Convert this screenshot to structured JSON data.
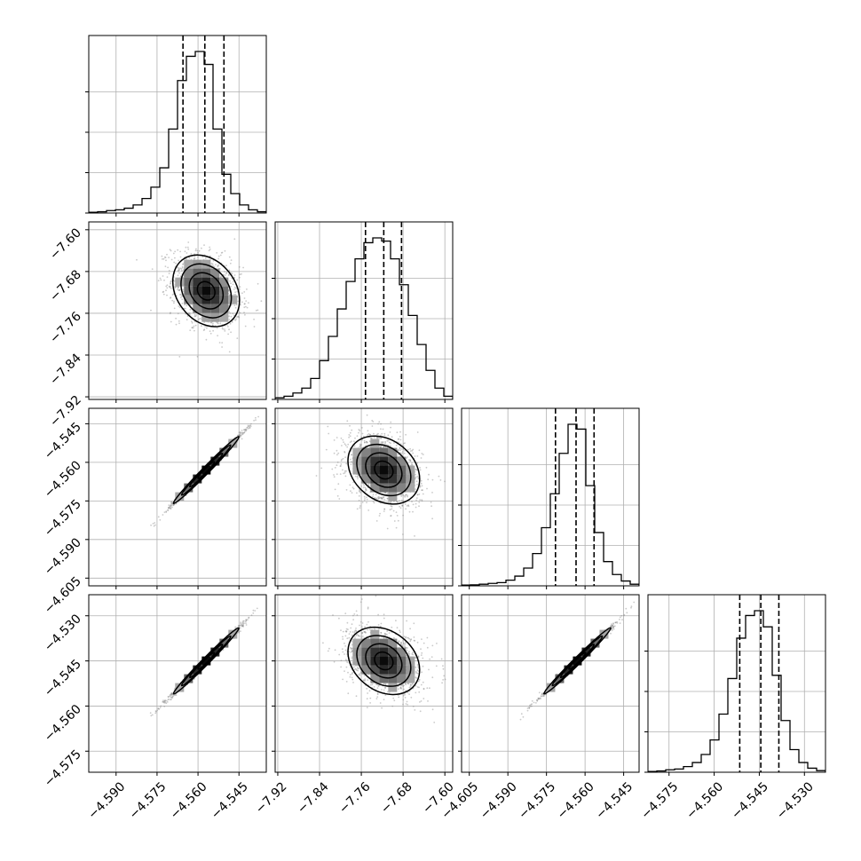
{
  "chart_data": {
    "type": "corner",
    "grid": true,
    "dimensions": 4,
    "parameters": [
      {
        "range": [
          -4.6,
          -4.535
        ],
        "ticks": [
          -4.59,
          -4.575,
          -4.56,
          -4.545
        ],
        "tick_labels": [
          "−4.590",
          "−4.575",
          "−4.560",
          "−4.545"
        ],
        "quantiles": [
          -4.5655,
          -4.5575,
          -4.5505
        ],
        "mean": -4.557,
        "sd": 0.006
      },
      {
        "range": [
          -7.925,
          -7.585
        ],
        "ticks": [
          -7.92,
          -7.84,
          -7.76,
          -7.68,
          -7.6
        ],
        "tick_labels": [
          "−7.92",
          "−7.84",
          "−7.76",
          "−7.68",
          "−7.60"
        ],
        "quantiles": [
          -7.752,
          -7.717,
          -7.683
        ],
        "mean": -7.717,
        "sd": 0.034
      },
      {
        "range": [
          -4.608,
          -4.539
        ],
        "ticks": [
          -4.605,
          -4.59,
          -4.575,
          -4.56,
          -4.545
        ],
        "tick_labels": [
          "−4.605",
          "−4.590",
          "−4.575",
          "−4.560",
          "−4.545"
        ],
        "quantiles": [
          -4.5715,
          -4.5635,
          -4.5565
        ],
        "mean": -4.563,
        "sd": 0.0065
      },
      {
        "range": [
          -4.582,
          -4.523
        ],
        "ticks": [
          -4.575,
          -4.56,
          -4.545,
          -4.53
        ],
        "tick_labels": [
          "−4.575",
          "−4.560",
          "−4.545",
          "−4.530"
        ],
        "quantiles": [
          -4.5515,
          -4.5445,
          -4.5385
        ],
        "mean": -4.545,
        "sd": 0.0055
      }
    ],
    "y_axes": {
      "1": {
        "range": [
          -7.925,
          -7.585
        ],
        "ticks": [
          -7.92,
          -7.84,
          -7.76,
          -7.68,
          -7.6
        ],
        "tick_labels": [
          "−7.92",
          "−7.84",
          "−7.76",
          "−7.68",
          "−7.60"
        ]
      },
      "2": {
        "range": [
          -4.608,
          -4.539
        ],
        "ticks": [
          -4.605,
          -4.59,
          -4.575,
          -4.56,
          -4.545
        ],
        "tick_labels": [
          "−4.605",
          "−4.590",
          "−4.575",
          "−4.560",
          "−4.545"
        ]
      },
      "3": {
        "range": [
          -4.582,
          -4.523
        ],
        "ticks": [
          -4.575,
          -4.56,
          -4.545,
          -4.53
        ],
        "tick_labels": [
          "−4.575",
          "−4.560",
          "−4.545",
          "−4.530"
        ]
      }
    },
    "histograms": [
      {
        "edges_range": [
          -4.6,
          -4.535
        ],
        "bins": 20,
        "max_count": 1,
        "counts": [
          0.005,
          0.008,
          0.015,
          0.02,
          0.03,
          0.05,
          0.09,
          0.16,
          0.28,
          0.52,
          0.82,
          0.97,
          1.0,
          0.92,
          0.52,
          0.24,
          0.12,
          0.05,
          0.02,
          0.008
        ]
      },
      {
        "edges_range": [
          -7.925,
          -7.585
        ],
        "bins": 20,
        "counts": [
          0.01,
          0.02,
          0.04,
          0.07,
          0.13,
          0.24,
          0.39,
          0.56,
          0.73,
          0.87,
          0.97,
          1.0,
          0.98,
          0.87,
          0.71,
          0.52,
          0.34,
          0.18,
          0.07,
          0.02
        ]
      },
      {
        "edges_range": [
          -4.608,
          -4.539
        ],
        "bins": 20,
        "counts": [
          0.005,
          0.006,
          0.01,
          0.015,
          0.02,
          0.035,
          0.06,
          0.11,
          0.2,
          0.36,
          0.57,
          0.82,
          1.0,
          0.97,
          0.62,
          0.33,
          0.15,
          0.07,
          0.03,
          0.01
        ]
      },
      {
        "edges_range": [
          -4.582,
          -4.523
        ],
        "bins": 20,
        "counts": [
          0.005,
          0.008,
          0.015,
          0.02,
          0.035,
          0.06,
          0.11,
          0.2,
          0.36,
          0.58,
          0.83,
          0.97,
          1.0,
          0.9,
          0.6,
          0.32,
          0.14,
          0.06,
          0.025,
          0.01
        ]
      }
    ],
    "correlations": {
      "1-0": -0.3,
      "2-0": 0.995,
      "2-1": -0.3,
      "3-0": 0.995,
      "3-1": -0.3,
      "3-2": 0.995
    }
  }
}
